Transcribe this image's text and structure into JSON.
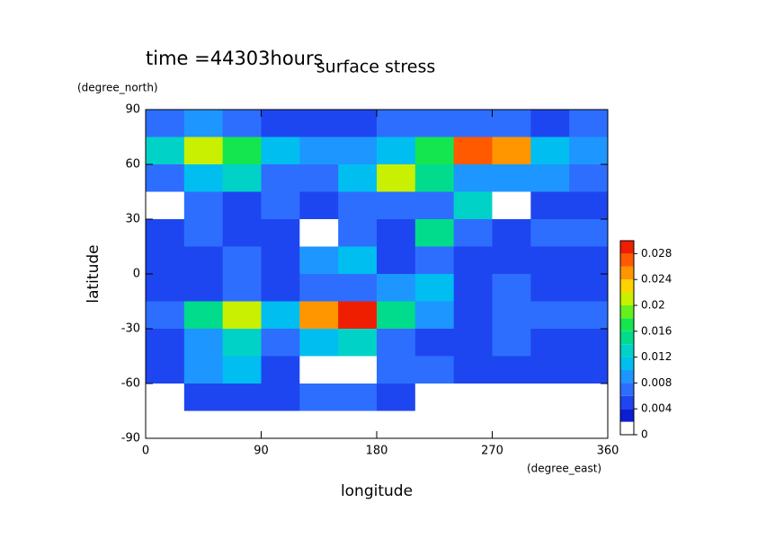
{
  "chart_data": {
    "type": "contour",
    "title": "surface stress",
    "annotation": "time =44303hours",
    "xlabel": "longitude",
    "ylabel": "latitude",
    "xunit": "(degree_east)",
    "yunit": "(degree_north)",
    "xlim": [
      0,
      360
    ],
    "xticks": [
      0,
      90,
      180,
      270,
      360
    ],
    "ylim": [
      -90,
      90
    ],
    "yticks": [
      90,
      60,
      30,
      0,
      -30,
      -60,
      -90
    ],
    "x": [
      15,
      45,
      75,
      105,
      135,
      165,
      195,
      225,
      255,
      285,
      315,
      345
    ],
    "y": [
      82.5,
      67.5,
      52.5,
      37.5,
      22.5,
      7.5,
      -7.5,
      -22.5,
      -37.5,
      -52.5,
      -67.5,
      -82.5
    ],
    "z": [
      [
        0.006,
        0.008,
        0.006,
        0.005,
        0.005,
        0.005,
        0.006,
        0.006,
        0.006,
        0.006,
        0.005,
        0.006
      ],
      [
        0.012,
        0.02,
        0.016,
        0.01,
        0.008,
        0.008,
        0.01,
        0.016,
        0.026,
        0.024,
        0.01,
        0.008
      ],
      [
        0.006,
        0.01,
        0.012,
        0.006,
        0.006,
        0.01,
        0.02,
        0.014,
        0.008,
        0.008,
        0.008,
        0.006
      ],
      [
        0.001,
        0.006,
        0.004,
        0.006,
        0.004,
        0.006,
        0.006,
        0.006,
        0.012,
        0.001,
        0.004,
        0.004
      ],
      [
        0.004,
        0.006,
        0.004,
        0.004,
        0.001,
        0.006,
        0.004,
        0.014,
        0.006,
        0.004,
        0.006,
        0.006
      ],
      [
        0.004,
        0.004,
        0.006,
        0.004,
        0.008,
        0.01,
        0.004,
        0.006,
        0.004,
        0.004,
        0.004,
        0.004
      ],
      [
        0.004,
        0.004,
        0.006,
        0.004,
        0.006,
        0.006,
        0.008,
        0.01,
        0.004,
        0.006,
        0.004,
        0.004
      ],
      [
        0.006,
        0.014,
        0.02,
        0.01,
        0.024,
        0.028,
        0.014,
        0.008,
        0.004,
        0.006,
        0.006,
        0.006
      ],
      [
        0.004,
        0.008,
        0.012,
        0.006,
        0.01,
        0.012,
        0.006,
        0.004,
        0.004,
        0.006,
        0.004,
        0.004
      ],
      [
        0.004,
        0.008,
        0.01,
        0.004,
        0.001,
        0.001,
        0.006,
        0.006,
        0.004,
        0.004,
        0.004,
        0.004
      ],
      [
        0.001,
        0.004,
        0.004,
        0.004,
        0.006,
        0.006,
        0.004,
        0.001,
        0.001,
        0.001,
        0.001,
        0.001
      ],
      [
        0.001,
        0.001,
        0.001,
        0.001,
        0.001,
        0.001,
        0.001,
        0.001,
        0.001,
        0.001,
        0.001,
        0.001
      ]
    ],
    "levels": [
      0,
      0.002,
      0.004,
      0.006,
      0.008,
      0.01,
      0.012,
      0.014,
      0.016,
      0.018,
      0.02,
      0.022,
      0.024,
      0.026,
      0.028,
      0.03
    ],
    "colors": [
      "#ffffff",
      "#0a1ed2",
      "#1e46f0",
      "#2d6eff",
      "#1e96ff",
      "#00bef0",
      "#00d2c8",
      "#00dc8c",
      "#14e650",
      "#64f01e",
      "#c8f000",
      "#ffd200",
      "#ff9600",
      "#ff5a00",
      "#f01e00"
    ],
    "clim": [
      0,
      0.03
    ],
    "cticks": [
      0,
      0.004,
      0.008,
      0.012,
      0.016,
      0.02,
      0.024,
      0.028
    ]
  }
}
